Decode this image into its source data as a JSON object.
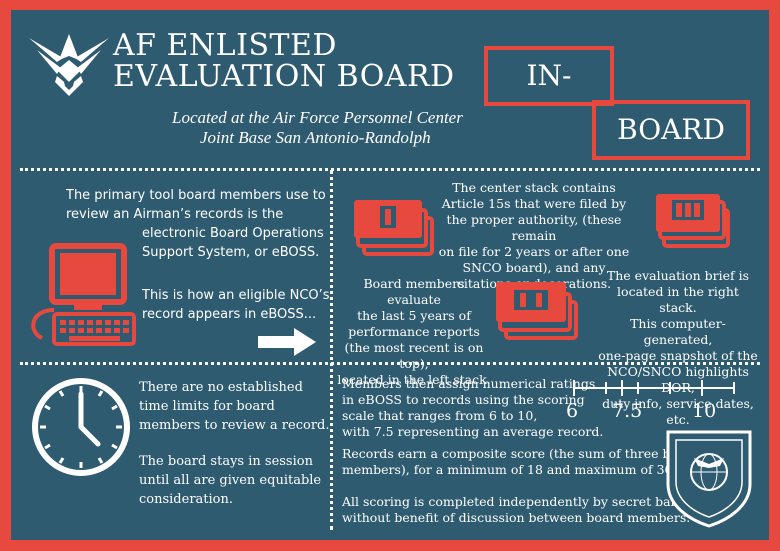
{
  "header": {
    "title_line1": "AF ENLISTED",
    "title_line2": "EVALUATION BOARD",
    "location_line1": "Located at the Air Force Personnel Center",
    "location_line2": "Joint Base San Antonio-Randolph",
    "badge_line1": "IN-",
    "badge_line2": "BOARD",
    "logo_icon": "air-force-symbol-icon"
  },
  "eboss": {
    "p1_l1": "The primary tool board members use to",
    "p1_l2": "review an Airman’s records is the",
    "p1_l3": "electronic Board Operations",
    "p1_l4": "Support System, or eBOSS.",
    "p2_l1": "This is how an eligible NCO’s",
    "p2_l2": "record appears in eBOSS...",
    "computer_icon": "computer-icon",
    "arrow_icon": "arrow-right-icon"
  },
  "stacks": {
    "center_l1": "The center stack contains",
    "center_l2": "Article 15s that were filed by",
    "center_l3": "the proper authority, (these remain",
    "center_l4": "on file for 2 years or after one",
    "center_l5": "SNCO board), and any",
    "center_l6": "citations or decorations.",
    "left_l1": "Board members evaluate",
    "left_l2": "the last 5 years of",
    "left_l3": "performance reports",
    "left_l4": "(the most recent is on top),",
    "left_l5": "located in the left stack.",
    "right_l1": "The evaluation brief is",
    "right_l2": "located in the right stack.",
    "right_l3": "This computer-generated,",
    "right_l4": "one-page snapshot of the",
    "right_l5": "NCO/SNCO highlights DOR,",
    "right_l6": "duty info, service dates, etc."
  },
  "time": {
    "clock_icon": "clock-icon",
    "p1_l1": "There are no established",
    "p1_l2": "time limits for board",
    "p1_l3": "members to review a record.",
    "p2_l1": "The board stays in session",
    "p2_l2": "until all are given equitable",
    "p2_l3": "consideration."
  },
  "scoring": {
    "p1_l1": "Members then assign numerical ratings",
    "p1_l2": "in eBOSS to records using the scoring",
    "p1_l3": "scale that ranges from 6 to 10,",
    "p1_l4": "with 7.5 representing an average record.",
    "scale_min": "6",
    "scale_avg": "7.5",
    "scale_max": "10",
    "p2_l1": "Records earn a composite score (the sum of three board",
    "p2_l2": "members), for a minimum of 18 and maximum of 30.",
    "p3_l1": "All scoring is completed independently by secret ballot,",
    "p3_l2": "without benefit of discussion between board members.",
    "seal_text": "AIR FORCE PERSONNEL CENTER",
    "seal_icon": "afpc-seal-icon"
  },
  "colors": {
    "accent": "#e8493f",
    "panel": "#2e5b70",
    "text": "#ffffff"
  }
}
